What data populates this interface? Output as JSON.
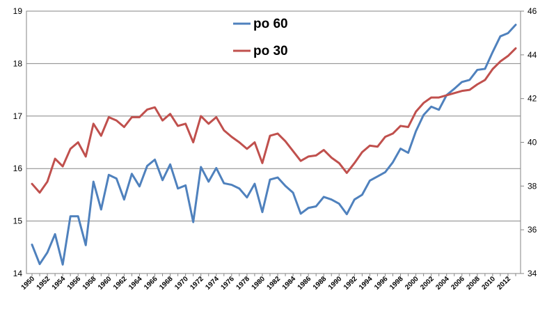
{
  "chart_data": {
    "type": "line",
    "x": [
      1950,
      1951,
      1952,
      1953,
      1954,
      1955,
      1956,
      1957,
      1958,
      1959,
      1960,
      1961,
      1962,
      1963,
      1964,
      1965,
      1966,
      1967,
      1968,
      1969,
      1970,
      1971,
      1972,
      1973,
      1974,
      1975,
      1976,
      1977,
      1978,
      1979,
      1980,
      1981,
      1982,
      1983,
      1984,
      1985,
      1986,
      1987,
      1988,
      1989,
      1990,
      1991,
      1992,
      1993,
      1994,
      1995,
      1996,
      1997,
      1998,
      1999,
      2000,
      2001,
      2002,
      2003,
      2004,
      2005,
      2006,
      2007,
      2008,
      2009,
      2010,
      2011,
      2012,
      2013
    ],
    "x_tick_labels": [
      "1950",
      "1952",
      "1954",
      "1956",
      "1958",
      "1960",
      "1962",
      "1964",
      "1966",
      "1968",
      "1970",
      "1972",
      "1974",
      "1976",
      "1978",
      "1980",
      "1982",
      "1984",
      "1986",
      "1988",
      "1990",
      "1992",
      "1994",
      "1996",
      "1998",
      "2000",
      "2002",
      "2004",
      "2006",
      "2008",
      "2010",
      "2012"
    ],
    "series": [
      {
        "name": "po 60",
        "axis": "left",
        "color": "#4f81bd",
        "values": [
          14.55,
          14.18,
          14.4,
          14.75,
          14.17,
          15.09,
          15.09,
          14.54,
          15.75,
          15.22,
          15.88,
          15.81,
          15.41,
          15.9,
          15.66,
          16.05,
          16.17,
          15.78,
          16.08,
          15.62,
          15.68,
          14.98,
          16.03,
          15.75,
          16.01,
          15.72,
          15.69,
          15.62,
          15.45,
          15.71,
          15.17,
          15.79,
          15.83,
          15.67,
          15.54,
          15.14,
          15.25,
          15.28,
          15.46,
          15.41,
          15.33,
          15.13,
          15.41,
          15.5,
          15.77,
          15.85,
          15.93,
          16.12,
          16.38,
          16.3,
          16.71,
          17.02,
          17.18,
          17.12,
          17.4,
          17.52,
          17.65,
          17.69,
          17.88,
          17.9,
          18.22,
          18.52,
          18.58,
          18.74
        ]
      },
      {
        "name": "po 30",
        "axis": "right",
        "color": "#c0504d",
        "values": [
          38.1,
          37.7,
          38.2,
          39.25,
          38.9,
          39.7,
          40.0,
          39.35,
          40.85,
          40.3,
          41.15,
          41.0,
          40.7,
          41.15,
          41.15,
          41.5,
          41.6,
          41.0,
          41.3,
          40.75,
          40.85,
          40.0,
          41.2,
          40.85,
          41.15,
          40.55,
          40.25,
          40.0,
          39.7,
          40.0,
          39.05,
          40.3,
          40.4,
          40.05,
          39.6,
          39.15,
          39.35,
          39.4,
          39.65,
          39.3,
          39.05,
          38.6,
          39.05,
          39.55,
          39.85,
          39.8,
          40.25,
          40.4,
          40.75,
          40.7,
          41.4,
          41.8,
          42.05,
          42.05,
          42.15,
          42.25,
          42.35,
          42.4,
          42.65,
          42.85,
          43.35,
          43.7,
          43.95,
          44.3
        ]
      }
    ],
    "y_left": {
      "min": 14,
      "max": 19,
      "ticks": [
        14,
        15,
        16,
        17,
        18,
        19
      ]
    },
    "y_right": {
      "min": 34,
      "max": 46,
      "ticks": [
        34,
        36,
        38,
        40,
        42,
        44,
        46
      ]
    },
    "grid": true,
    "legend_position": "top-center"
  }
}
